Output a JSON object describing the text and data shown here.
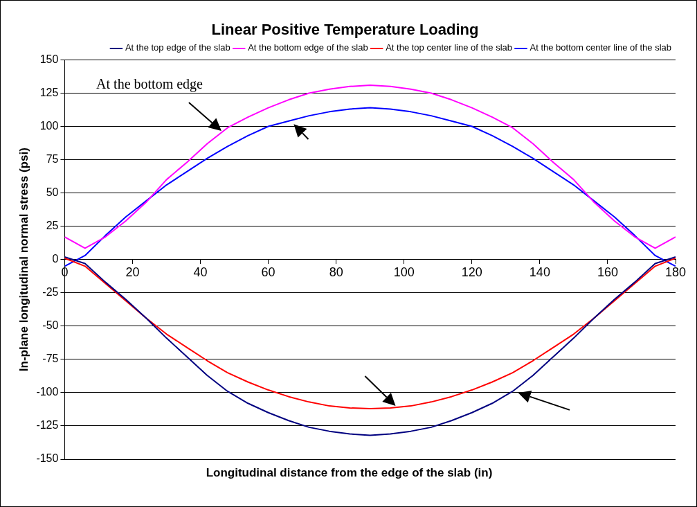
{
  "chart_data": {
    "type": "line",
    "title": "Linear Positive Temperature Loading",
    "xlabel": "Longitudinal distance from the edge of the slab (in)",
    "ylabel": "In-plane longitudinal normal stress (psi)",
    "annotations": [
      "At the bottom edge"
    ],
    "x": [
      0,
      6,
      12,
      18,
      24,
      30,
      36,
      42,
      48,
      54,
      60,
      66,
      72,
      78,
      84,
      90,
      96,
      102,
      108,
      114,
      120,
      126,
      132,
      138,
      144,
      150,
      156,
      162,
      168,
      174,
      180
    ],
    "series": [
      {
        "name": "At the top edge of the slab",
        "color": "#000080",
        "values": [
          2,
          -3,
          -17,
          -30,
          -44,
          -59,
          -73,
          -87,
          -99,
          -108,
          -115,
          -121,
          -126,
          -129,
          -131,
          -132,
          -131,
          -129,
          -126,
          -121,
          -115,
          -108,
          -99,
          -87,
          -73,
          -59,
          -44,
          -30,
          -17,
          -3,
          2
        ]
      },
      {
        "name": "At the bottom edge of the slab",
        "color": "#ff00ff",
        "values": [
          17,
          8.5,
          17,
          29,
          43,
          60,
          73,
          87,
          99,
          107,
          114,
          120,
          125,
          128,
          130,
          131,
          130,
          128,
          125,
          120,
          114,
          107,
          99,
          87,
          73,
          60,
          43,
          29,
          17,
          8.5,
          17
        ]
      },
      {
        "name": "At the top center line of the slab",
        "color": "#ff0000",
        "values": [
          1,
          -5,
          -18,
          -31,
          -44,
          -56,
          -66,
          -76,
          -85,
          -92,
          -98,
          -103,
          -107,
          -110,
          -111.5,
          -112,
          -111.5,
          -110,
          -107,
          -103,
          -98,
          -92,
          -85,
          -76,
          -66,
          -56,
          -44,
          -31,
          -18,
          -5,
          1
        ]
      },
      {
        "name": "At the bottom center line of the slab",
        "color": "#0000ff",
        "values": [
          -5,
          3,
          18,
          32,
          44,
          56,
          66,
          76,
          85,
          93,
          100,
          104,
          108,
          111,
          113,
          114,
          113,
          111,
          108,
          104,
          100,
          93,
          85,
          76,
          66,
          56,
          44,
          32,
          18,
          3,
          -5
        ]
      }
    ],
    "xlim": [
      0,
      180
    ],
    "xticks": [
      0,
      20,
      40,
      60,
      80,
      100,
      120,
      140,
      160,
      180
    ],
    "ylim": [
      -150,
      150
    ],
    "yticks": [
      -150,
      -125,
      -100,
      -75,
      -50,
      -25,
      0,
      25,
      50,
      75,
      100,
      125,
      150
    ],
    "grid": "y",
    "legend": "top right",
    "marker": "none",
    "line_style": "solid"
  }
}
